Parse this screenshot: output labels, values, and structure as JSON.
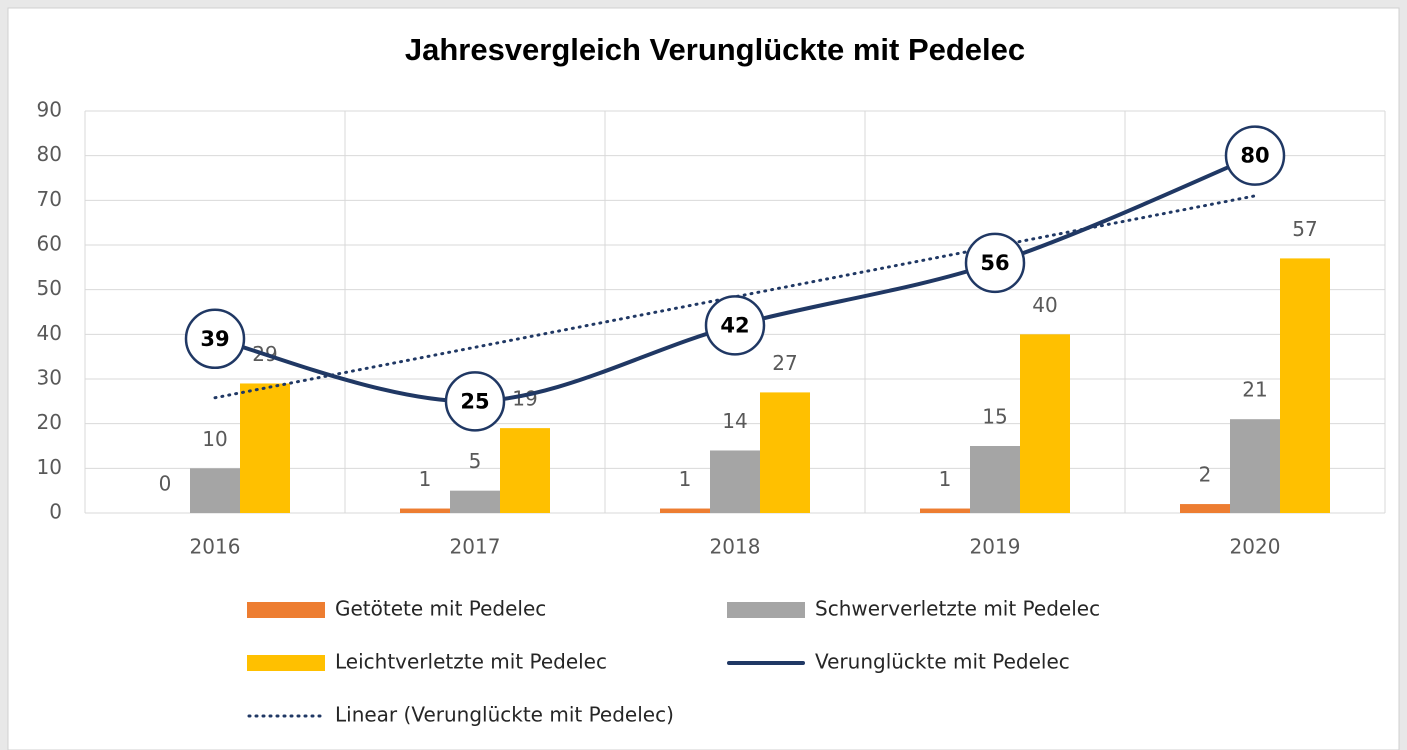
{
  "chart_data": {
    "type": "bar",
    "title": "Jahresvergleich Verunglückte mit Pedelec",
    "categories": [
      "2016",
      "2017",
      "2018",
      "2019",
      "2020"
    ],
    "series": [
      {
        "name": "Getötete mit Pedelec",
        "type": "bar",
        "color": "#ED7D31",
        "values": [
          0,
          1,
          1,
          1,
          2
        ],
        "data_labels": true
      },
      {
        "name": "Schwerverletzte mit Pedelec",
        "type": "bar",
        "color": "#A5A5A5",
        "values": [
          10,
          5,
          14,
          15,
          21
        ],
        "data_labels": true
      },
      {
        "name": "Leichtverletzte mit Pedelec",
        "type": "bar",
        "color": "#FFC000",
        "values": [
          29,
          19,
          27,
          40,
          57
        ],
        "data_labels": true
      },
      {
        "name": "Verunglückte mit Pedelec",
        "type": "line",
        "color": "#203864",
        "smooth": true,
        "values": [
          39,
          25,
          42,
          56,
          80
        ],
        "data_labels": true
      },
      {
        "name": "Linear (Verunglückte mit Pedelec)",
        "type": "line",
        "color": "#203864",
        "style": "dotted",
        "values": [
          25.8,
          37.1,
          48.4,
          59.7,
          71.0
        ],
        "data_labels": false
      }
    ],
    "ylim": [
      0,
      90
    ],
    "yticks": [
      0,
      10,
      20,
      30,
      40,
      50,
      60,
      70,
      80,
      90
    ],
    "grid": true,
    "legend": "bottom"
  }
}
